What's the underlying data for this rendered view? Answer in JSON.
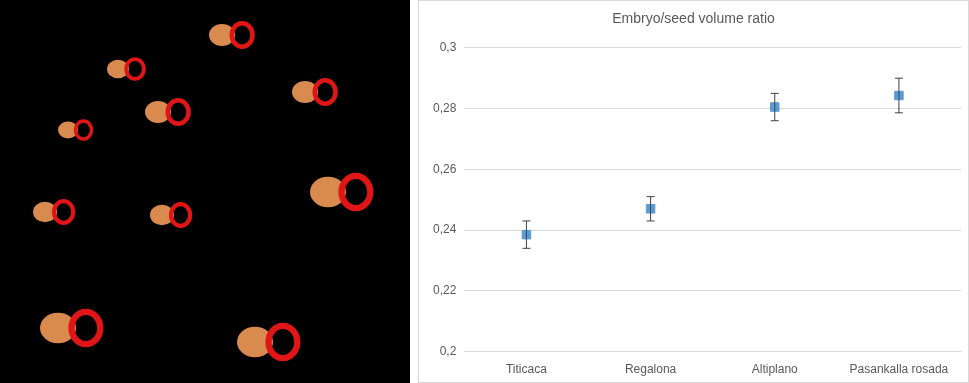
{
  "chart_data": {
    "type": "line",
    "title": "Embryo/seed volume ratio",
    "categories": [
      "Titicaca",
      "Regalona",
      "Altiplano",
      "Pasankalla rosada"
    ],
    "values": [
      0.2385,
      0.247,
      0.2805,
      0.2843
    ],
    "errors": [
      0.0045,
      0.004,
      0.0045,
      0.0057
    ],
    "color": "#5b9bd5",
    "marker": "square",
    "line_style": "none",
    "ylim": [
      0.2,
      0.3
    ],
    "yticks": [
      {
        "value": 0.2,
        "label": "0,2"
      },
      {
        "value": 0.22,
        "label": "0,22"
      },
      {
        "value": 0.24,
        "label": "0,24"
      },
      {
        "value": 0.26,
        "label": "0,26"
      },
      {
        "value": 0.28,
        "label": "0,28"
      },
      {
        "value": 0.3,
        "label": "0,3"
      }
    ],
    "grid": true
  }
}
